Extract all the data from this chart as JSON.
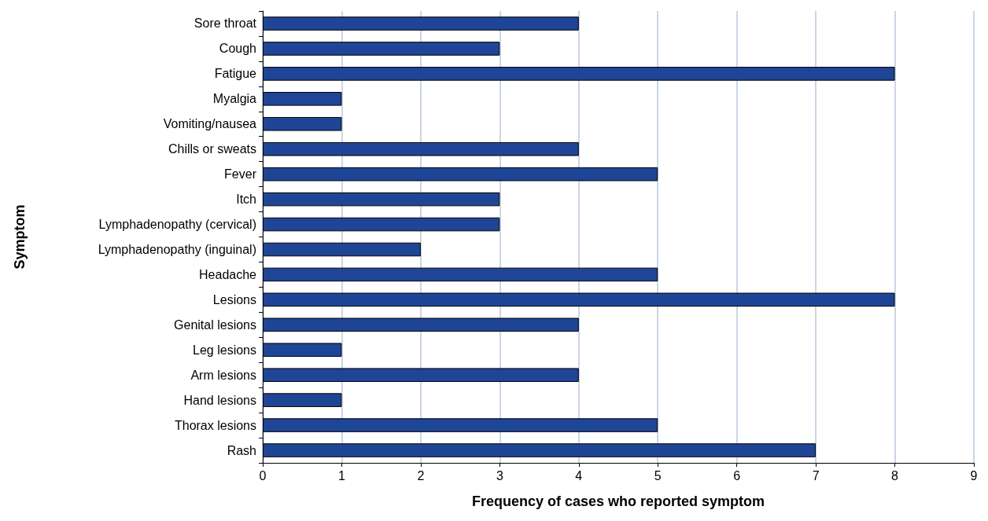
{
  "chart_data": {
    "type": "bar",
    "orientation": "horizontal",
    "xlabel": "Frequency of cases who reported symptom",
    "ylabel": "Symptom",
    "categories": [
      "Sore throat",
      "Cough",
      "Fatigue",
      "Myalgia",
      "Vomiting/nausea",
      "Chills or sweats",
      "Fever",
      "Itch",
      "Lymphadenopathy (cervical)",
      "Lymphadenopathy (inguinal)",
      "Headache",
      "Lesions",
      "Genital lesions",
      "Leg lesions",
      "Arm lesions",
      "Hand lesions",
      "Thorax lesions",
      "Rash"
    ],
    "values": [
      4,
      3,
      8,
      1,
      1,
      4,
      5,
      3,
      3,
      2,
      5,
      8,
      4,
      1,
      4,
      1,
      5,
      7
    ],
    "color": "#1f4596",
    "xlim": [
      0,
      9
    ],
    "xticks": [
      0,
      1,
      2,
      3,
      4,
      5,
      6,
      7,
      8,
      9
    ],
    "grid": "x"
  }
}
